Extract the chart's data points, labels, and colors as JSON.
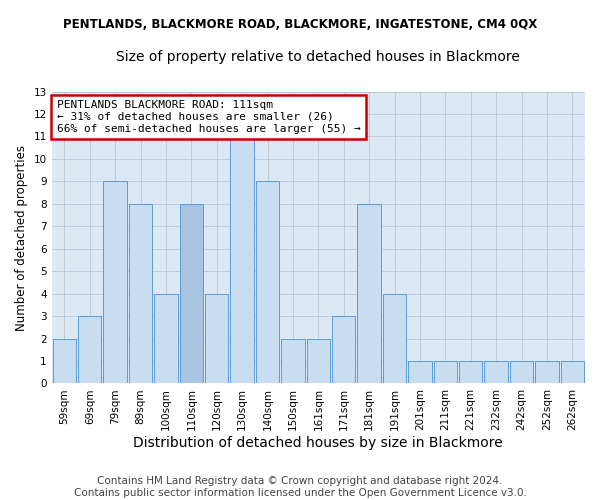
{
  "title": "PENTLANDS, BLACKMORE ROAD, BLACKMORE, INGATESTONE, CM4 0QX",
  "subtitle": "Size of property relative to detached houses in Blackmore",
  "xlabel": "Distribution of detached houses by size in Blackmore",
  "ylabel": "Number of detached properties",
  "categories": [
    "59sqm",
    "69sqm",
    "79sqm",
    "89sqm",
    "100sqm",
    "110sqm",
    "120sqm",
    "130sqm",
    "140sqm",
    "150sqm",
    "161sqm",
    "171sqm",
    "181sqm",
    "191sqm",
    "201sqm",
    "211sqm",
    "221sqm",
    "232sqm",
    "242sqm",
    "252sqm",
    "262sqm"
  ],
  "values": [
    2,
    3,
    9,
    8,
    4,
    8,
    4,
    11,
    9,
    2,
    2,
    3,
    8,
    4,
    1,
    1,
    1,
    1,
    1,
    1,
    1
  ],
  "highlight_index": 5,
  "bar_color": "#c9ddf0",
  "highlight_color": "#a8c4e0",
  "bar_edge_color": "#5b9bd5",
  "ylim": [
    0,
    13
  ],
  "yticks": [
    0,
    1,
    2,
    3,
    4,
    5,
    6,
    7,
    8,
    9,
    10,
    11,
    12,
    13
  ],
  "annotation_text": "PENTLANDS BLACKMORE ROAD: 111sqm\n← 31% of detached houses are smaller (26)\n66% of semi-detached houses are larger (55) →",
  "annotation_box_color": "#ffffff",
  "annotation_box_edge_color": "#cc0000",
  "footer_line1": "Contains HM Land Registry data © Crown copyright and database right 2024.",
  "footer_line2": "Contains public sector information licensed under the Open Government Licence v3.0.",
  "background_color": "#ffffff",
  "plot_bg_color": "#dde8f5",
  "grid_color": "#b8c8d8",
  "title_fontsize": 8.5,
  "subtitle_fontsize": 10,
  "xlabel_fontsize": 10,
  "ylabel_fontsize": 8.5,
  "tick_fontsize": 7.5,
  "annotation_fontsize": 8,
  "footer_fontsize": 7.5
}
